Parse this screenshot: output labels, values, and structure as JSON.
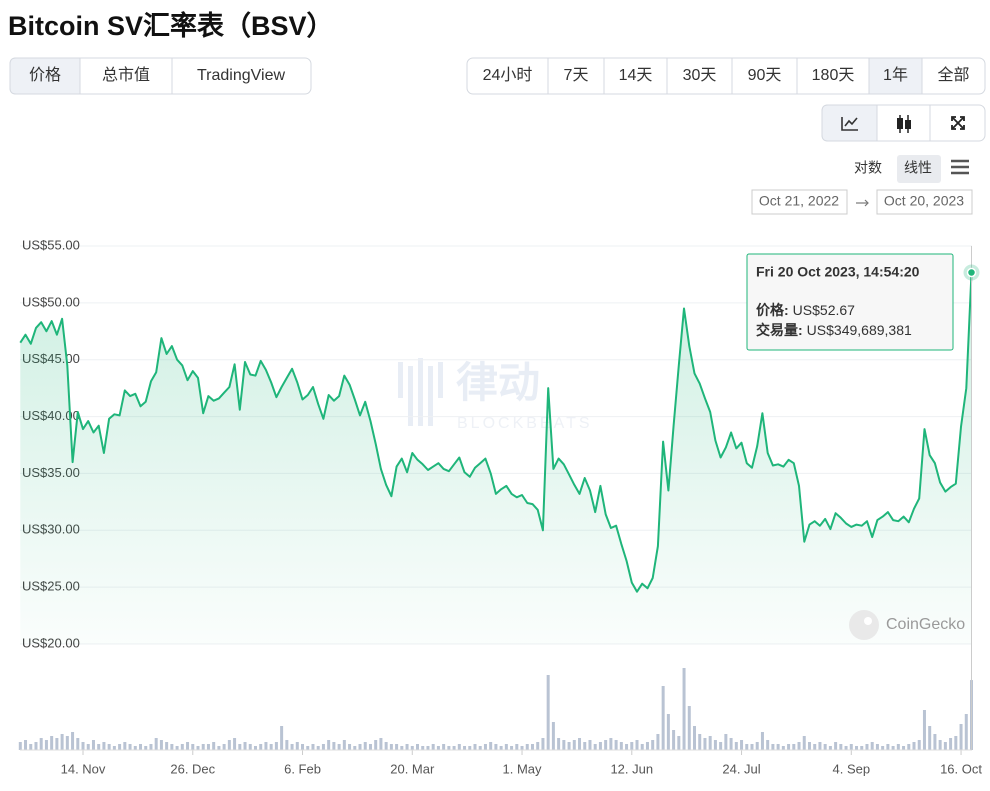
{
  "header": {
    "title": "Bitcoin SV汇率表（BSV）",
    "tabs": [
      "价格",
      "总市值",
      "TradingView"
    ],
    "ranges": [
      "24小时",
      "7天",
      "14天",
      "30天",
      "90天",
      "180天",
      "1年",
      "全部"
    ],
    "scales": [
      "对数",
      "线性"
    ],
    "date_from": "Oct 21, 2022",
    "date_to": "Oct 20, 2023"
  },
  "watermarks": {
    "brand": "律动",
    "brand_sub": "BLOCKBEATS",
    "source": "CoinGecko"
  },
  "chart_data": {
    "type": "line",
    "categories": [
      null,
      null,
      null,
      null,
      null,
      null,
      null,
      null,
      null,
      null,
      null,
      null,
      "14. Nov",
      null,
      null,
      null,
      null,
      null,
      null,
      null,
      null,
      null,
      null,
      null,
      null,
      null,
      null,
      null,
      null,
      null,
      null,
      null,
      null,
      "26. Dec",
      null,
      null,
      null,
      null,
      null,
      null,
      null,
      null,
      null,
      null,
      null,
      null,
      null,
      null,
      null,
      null,
      null,
      null,
      null,
      null,
      "6. Feb",
      null,
      null,
      null,
      null,
      null,
      null,
      null,
      null,
      null,
      null,
      null,
      null,
      null,
      null,
      null,
      null,
      null,
      null,
      null,
      null,
      "20. Mar",
      null,
      null,
      null,
      null,
      null,
      null,
      null,
      null,
      null,
      null,
      null,
      null,
      null,
      null,
      null,
      null,
      null,
      null,
      null,
      null,
      "1. May",
      null,
      null,
      null,
      null,
      null,
      null,
      null,
      null,
      null,
      null,
      null,
      null,
      null,
      null,
      null,
      null,
      null,
      null,
      null,
      null,
      "12. Jun",
      null,
      null,
      null,
      null,
      null,
      null,
      null,
      null,
      null,
      null,
      null,
      null,
      null,
      null,
      null,
      null,
      null,
      null,
      null,
      null,
      "24. Jul",
      null,
      null,
      null,
      null,
      null,
      null,
      null,
      null,
      null,
      null,
      null,
      null,
      null,
      null,
      null,
      null,
      null,
      null,
      null,
      null,
      "4. Sep",
      null,
      null,
      null,
      null,
      null,
      null,
      null,
      null,
      null,
      null,
      null,
      null,
      null,
      null,
      null,
      null,
      null,
      null,
      null,
      null,
      "16. Oct",
      null,
      null
    ],
    "series": [
      {
        "color": "#1fb57a",
        "values": [
          46.5,
          47.2,
          46.4,
          47.8,
          48.3,
          47.5,
          48.4,
          47.2,
          48.6,
          44.5,
          36.0,
          40.4,
          38.9,
          39.6,
          38.6,
          39.2,
          36.8,
          39.8,
          40.2,
          40.1,
          42.3,
          41.8,
          42.0,
          40.9,
          41.3,
          43.1,
          43.9,
          46.9,
          45.5,
          46.2,
          45.0,
          44.5,
          43.2,
          44.0,
          43.4,
          40.3,
          41.8,
          41.4,
          41.6,
          42.1,
          42.6,
          44.6,
          40.6,
          44.8,
          43.7,
          43.6,
          44.9,
          44.1,
          43.0,
          41.7,
          42.6,
          43.4,
          44.2,
          43.0,
          41.5,
          41.9,
          42.6,
          41.1,
          39.8,
          41.9,
          41.4,
          41.8,
          43.6,
          42.8,
          41.5,
          40.1,
          41.3,
          39.6,
          37.6,
          35.4,
          34.0,
          33.0,
          35.6,
          36.3,
          35.1,
          36.8,
          36.2,
          35.8,
          35.3,
          35.6,
          35.9,
          35.4,
          35.2,
          35.8,
          36.4,
          35.1,
          34.7,
          35.5,
          35.9,
          36.3,
          35.0,
          33.2,
          33.6,
          33.9,
          33.2,
          32.9,
          33.1,
          32.4,
          32.3,
          31.8,
          30.0,
          42.5,
          35.4,
          36.3,
          35.8,
          34.9,
          34.0,
          33.2,
          34.6,
          33.5,
          31.6,
          33.9,
          31.4,
          30.2,
          30.4,
          28.8,
          27.3,
          25.4,
          24.6,
          25.3,
          24.9,
          25.8,
          28.6,
          37.8,
          33.5,
          39.2,
          44.5,
          49.5,
          46.2,
          43.8,
          42.9,
          41.6,
          40.4,
          37.9,
          36.4,
          37.3,
          38.6,
          37.2,
          37.7,
          35.9,
          35.5,
          37.4,
          40.3,
          36.8,
          35.7,
          35.8,
          35.6,
          36.2,
          35.9,
          33.9,
          29.0,
          30.5,
          30.8,
          30.4,
          31.0,
          30.1,
          31.5,
          31.1,
          30.6,
          30.3,
          30.5,
          30.4,
          30.8,
          29.4,
          30.9,
          31.2,
          31.6,
          30.9,
          30.8,
          31.2,
          30.7,
          31.9,
          32.8,
          38.9,
          36.6,
          35.9,
          34.2,
          33.4,
          33.8,
          34.1,
          39.1,
          42.5,
          52.67
        ]
      },
      {
        "color": "#b9c3d3",
        "axis": "y2",
        "values": [
          40000000.0,
          50000000.0,
          30000000.0,
          40000000.0,
          60000000.0,
          50000000.0,
          70000000.0,
          60000000.0,
          80000000.0,
          70000000.0,
          90000000.0,
          60000000.0,
          40000000.0,
          30000000.0,
          50000000.0,
          30000000.0,
          40000000.0,
          30000000.0,
          20000000.0,
          30000000.0,
          40000000.0,
          30000000.0,
          20000000.0,
          30000000.0,
          20000000.0,
          30000000.0,
          60000000.0,
          50000000.0,
          40000000.0,
          30000000.0,
          20000000.0,
          30000000.0,
          40000000.0,
          30000000.0,
          20000000.0,
          30000000.0,
          30000000.0,
          40000000.0,
          20000000.0,
          30000000.0,
          50000000.0,
          60000000.0,
          30000000.0,
          40000000.0,
          30000000.0,
          20000000.0,
          30000000.0,
          40000000.0,
          30000000.0,
          40000000.0,
          120000000.0,
          50000000.0,
          30000000.0,
          40000000.0,
          30000000.0,
          20000000.0,
          30000000.0,
          20000000.0,
          30000000.0,
          50000000.0,
          40000000.0,
          30000000.0,
          50000000.0,
          30000000.0,
          20000000.0,
          30000000.0,
          40000000.0,
          30000000.0,
          50000000.0,
          60000000.0,
          40000000.0,
          30000000.0,
          30000000.0,
          20000000.0,
          30000000.0,
          20000000.0,
          30000000.0,
          20000000.0,
          20000000.0,
          30000000.0,
          20000000.0,
          30000000.0,
          20000000.0,
          20000000.0,
          30000000.0,
          20000000.0,
          20000000.0,
          30000000.0,
          20000000.0,
          30000000.0,
          40000000.0,
          30000000.0,
          20000000.0,
          30000000.0,
          20000000.0,
          30000000.0,
          20000000.0,
          30000000.0,
          30000000.0,
          40000000.0,
          60000000.0,
          375000000.0,
          140000000.0,
          60000000.0,
          50000000.0,
          40000000.0,
          50000000.0,
          60000000.0,
          40000000.0,
          50000000.0,
          30000000.0,
          40000000.0,
          50000000.0,
          60000000.0,
          50000000.0,
          40000000.0,
          30000000.0,
          40000000.0,
          50000000.0,
          30000000.0,
          40000000.0,
          50000000.0,
          80000000.0,
          320000000.0,
          180000000.0,
          100000000.0,
          70000000.0,
          410000000.0,
          220000000.0,
          120000000.0,
          80000000.0,
          60000000.0,
          70000000.0,
          50000000.0,
          40000000.0,
          80000000.0,
          60000000.0,
          40000000.0,
          50000000.0,
          30000000.0,
          30000000.0,
          40000000.0,
          90000000.0,
          50000000.0,
          30000000.0,
          30000000.0,
          20000000.0,
          30000000.0,
          30000000.0,
          40000000.0,
          70000000.0,
          40000000.0,
          30000000.0,
          40000000.0,
          30000000.0,
          20000000.0,
          40000000.0,
          30000000.0,
          20000000.0,
          30000000.0,
          20000000.0,
          20000000.0,
          30000000.0,
          40000000.0,
          30000000.0,
          20000000.0,
          30000000.0,
          20000000.0,
          30000000.0,
          20000000.0,
          30000000.0,
          40000000.0,
          50000000.0,
          200000000.0,
          120000000.0,
          80000000.0,
          50000000.0,
          40000000.0,
          60000000.0,
          70000000.0,
          130000000.0,
          180000000.0,
          349689381
        ]
      }
    ],
    "ylim": [
      20,
      55
    ],
    "yticks": [
      {
        "value": 20,
        "label": "US$20.00"
      },
      {
        "value": 25,
        "label": "US$25.00"
      },
      {
        "value": 30,
        "label": "US$30.00"
      },
      {
        "value": 35,
        "label": "US$35.00"
      },
      {
        "value": 40,
        "label": "US$40.00"
      },
      {
        "value": 45,
        "label": "US$45.00"
      },
      {
        "value": 50,
        "label": "US$50.00"
      },
      {
        "value": 55,
        "label": "US$55.00"
      }
    ],
    "y2lim": [
      0,
      500000000.0
    ],
    "grid": true,
    "tooltip": {
      "title": "Fri 20 Oct 2023, 14:54:20",
      "rows": [
        [
          "价格:",
          "US$52.67"
        ],
        [
          "交易量:",
          "US$349,689,381"
        ]
      ]
    }
  }
}
